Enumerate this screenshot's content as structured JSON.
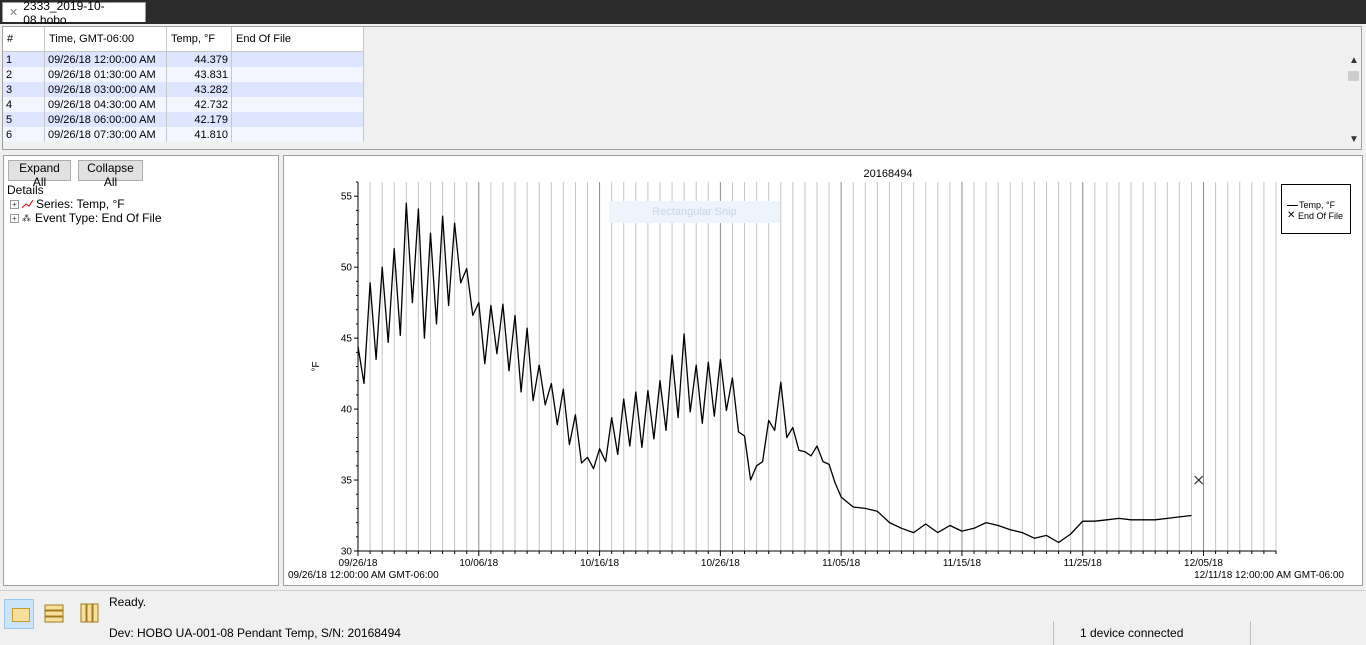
{
  "tab": {
    "title": "2333_2019-10-08.hobo"
  },
  "table": {
    "headers": [
      "#",
      "Time, GMT-06:00",
      "Temp, °F",
      "End Of File"
    ],
    "rows": [
      [
        "1",
        "09/26/18 12:00:00 AM",
        "44.379",
        ""
      ],
      [
        "2",
        "09/26/18 01:30:00 AM",
        "43.831",
        ""
      ],
      [
        "3",
        "09/26/18 03:00:00 AM",
        "43.282",
        ""
      ],
      [
        "4",
        "09/26/18 04:30:00 AM",
        "42.732",
        ""
      ],
      [
        "5",
        "09/26/18 06:00:00 AM",
        "42.179",
        ""
      ],
      [
        "6",
        "09/26/18 07:30:00 AM",
        "41.810",
        ""
      ]
    ]
  },
  "details": {
    "expand_label": "Expand All",
    "collapse_label": "Collapse All",
    "heading": "Details",
    "items": [
      {
        "label": "Series: Temp, °F",
        "icon": "series-line-icon"
      },
      {
        "label": "Event Type: End Of File",
        "icon": "event-dots-icon"
      }
    ]
  },
  "chart": {
    "snip_hint": "Rectangular Snip",
    "legend": {
      "series": "Temp, °F",
      "event": "End Of File"
    },
    "start_label": "09/26/18 12:00:00 AM GMT-06:00",
    "end_label": "12/11/18 12:00:00 AM GMT-06:00"
  },
  "chart_data": {
    "type": "line",
    "title": "20168494",
    "ylabel": "°F",
    "xlabel": "",
    "x_range": [
      "09/26/18",
      "12/11/18"
    ],
    "ylim": [
      30,
      56
    ],
    "y_ticks": [
      30,
      35,
      40,
      45,
      50,
      55
    ],
    "x_ticks": [
      "09/26/18",
      "10/06/18",
      "10/16/18",
      "10/26/18",
      "11/05/18",
      "11/15/18",
      "11/25/18",
      "12/05/18"
    ],
    "grid": "vertical daily lines",
    "legend_position": "top-right",
    "series": [
      {
        "name": "Temp, °F",
        "x": [
          "09/26/18",
          "09/26/18",
          "09/27/18",
          "09/27/18",
          "09/28/18",
          "09/28/18",
          "09/29/18",
          "09/29/18",
          "09/30/18",
          "09/30/18",
          "10/01/18",
          "10/01/18",
          "10/02/18",
          "10/02/18",
          "10/03/18",
          "10/03/18",
          "10/04/18",
          "10/04/18",
          "10/05/18",
          "10/05/18",
          "10/06/18",
          "10/06/18",
          "10/07/18",
          "10/07/18",
          "10/08/18",
          "10/08/18",
          "10/09/18",
          "10/09/18",
          "10/10/18",
          "10/10/18",
          "10/11/18",
          "10/11/18",
          "10/12/18",
          "10/12/18",
          "10/13/18",
          "10/13/18",
          "10/14/18",
          "10/14/18",
          "10/15/18",
          "10/15/18",
          "10/16/18",
          "10/16/18",
          "10/17/18",
          "10/17/18",
          "10/18/18",
          "10/18/18",
          "10/19/18",
          "10/19/18",
          "10/20/18",
          "10/20/18",
          "10/21/18",
          "10/21/18",
          "10/22/18",
          "10/22/18",
          "10/23/18",
          "10/23/18",
          "10/24/18",
          "10/24/18",
          "10/25/18",
          "10/25/18",
          "10/26/18",
          "10/26/18",
          "10/27/18",
          "10/27/18",
          "10/28/18",
          "10/28/18",
          "10/29/18",
          "10/29/18",
          "10/30/18",
          "10/30/18",
          "10/31/18",
          "10/31/18",
          "11/01/18",
          "11/01/18",
          "11/02/18",
          "11/02/18",
          "11/03/18",
          "11/03/18",
          "11/04/18",
          "11/04/18",
          "11/05/18",
          "11/06/18",
          "11/07/18",
          "11/08/18",
          "11/09/18",
          "11/10/18",
          "11/11/18",
          "11/12/18",
          "11/13/18",
          "11/14/18",
          "11/15/18",
          "11/16/18",
          "11/17/18",
          "11/18/18",
          "11/19/18",
          "11/20/18",
          "11/21/18",
          "11/22/18",
          "11/23/18",
          "11/24/18",
          "11/25/18",
          "11/26/18",
          "11/27/18",
          "11/28/18",
          "11/29/18",
          "11/30/18",
          "12/01/18",
          "12/02/18",
          "12/03/18",
          "12/04/18"
        ],
        "values": [
          44.4,
          41.8,
          48.9,
          43.5,
          50.0,
          44.7,
          51.3,
          45.2,
          54.5,
          47.5,
          54.1,
          45.0,
          52.4,
          46.0,
          53.6,
          47.3,
          53.1,
          48.9,
          49.9,
          46.6,
          47.5,
          43.2,
          47.3,
          43.9,
          47.4,
          42.7,
          46.6,
          41.2,
          45.7,
          40.6,
          43.1,
          40.3,
          41.8,
          38.9,
          41.4,
          37.5,
          39.6,
          36.2,
          36.6,
          35.8,
          37.2,
          36.3,
          39.4,
          36.8,
          40.7,
          37.4,
          41.2,
          37.3,
          41.3,
          37.9,
          42.0,
          38.5,
          43.8,
          39.4,
          45.3,
          39.8,
          43.1,
          39.0,
          43.3,
          39.5,
          43.5,
          39.9,
          42.2,
          38.4,
          38.1,
          35.0,
          36.0,
          36.3,
          39.2,
          38.5,
          41.9,
          38.0,
          38.7,
          37.1,
          37.0,
          36.7,
          37.4,
          36.3,
          36.1,
          34.8,
          33.8,
          33.1,
          33.0,
          32.8,
          32.0,
          31.6,
          31.3,
          31.9,
          31.3,
          31.8,
          31.4,
          31.6,
          32.0,
          31.8,
          31.5,
          31.3,
          30.9,
          31.1,
          30.6,
          31.2,
          32.1,
          32.1,
          32.2,
          32.3,
          32.2,
          32.2,
          32.2,
          32.3,
          32.4,
          32.5
        ],
        "color": "#000000"
      }
    ],
    "events": [
      {
        "name": "End Of File",
        "x": "12/04/18",
        "y": 35.0,
        "marker": "x"
      }
    ]
  },
  "status": {
    "ready": "Ready.",
    "device": "Dev: HOBO UA-001-08 Pendant Temp, S/N: 20168494",
    "connected": "1 device connected"
  }
}
